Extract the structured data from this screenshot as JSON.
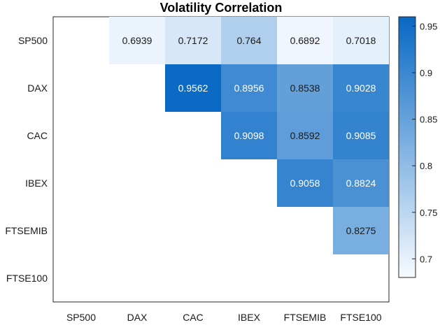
{
  "chart_data": {
    "type": "heatmap",
    "title": "Volatility Correlation",
    "x_categories": [
      "SP500",
      "DAX",
      "CAC",
      "IBEX",
      "FTSEMIB",
      "FTSE100"
    ],
    "y_categories": [
      "SP500",
      "DAX",
      "CAC",
      "IBEX",
      "FTSEMIB",
      "FTSE100"
    ],
    "cells": [
      {
        "row": "SP500",
        "col": "DAX",
        "value": 0.6939,
        "label": "0.6939"
      },
      {
        "row": "SP500",
        "col": "CAC",
        "value": 0.7172,
        "label": "0.7172"
      },
      {
        "row": "SP500",
        "col": "IBEX",
        "value": 0.764,
        "label": "0.764"
      },
      {
        "row": "SP500",
        "col": "FTSEMIB",
        "value": 0.6892,
        "label": "0.6892"
      },
      {
        "row": "SP500",
        "col": "FTSE100",
        "value": 0.7018,
        "label": "0.7018"
      },
      {
        "row": "DAX",
        "col": "CAC",
        "value": 0.9562,
        "label": "0.9562"
      },
      {
        "row": "DAX",
        "col": "IBEX",
        "value": 0.8956,
        "label": "0.8956"
      },
      {
        "row": "DAX",
        "col": "FTSEMIB",
        "value": 0.8538,
        "label": "0.8538"
      },
      {
        "row": "DAX",
        "col": "FTSE100",
        "value": 0.9028,
        "label": "0.9028"
      },
      {
        "row": "CAC",
        "col": "IBEX",
        "value": 0.9098,
        "label": "0.9098"
      },
      {
        "row": "CAC",
        "col": "FTSEMIB",
        "value": 0.8592,
        "label": "0.8592"
      },
      {
        "row": "CAC",
        "col": "FTSE100",
        "value": 0.9085,
        "label": "0.9085"
      },
      {
        "row": "IBEX",
        "col": "FTSEMIB",
        "value": 0.9058,
        "label": "0.9058"
      },
      {
        "row": "IBEX",
        "col": "FTSE100",
        "value": 0.8824,
        "label": "0.8824"
      },
      {
        "row": "FTSEMIB",
        "col": "FTSE100",
        "value": 0.8275,
        "label": "0.8275"
      }
    ],
    "colorbar": {
      "range": [
        0.68,
        0.96
      ],
      "ticks": [
        "0.7",
        "0.75",
        "0.8",
        "0.85",
        "0.9",
        "0.95"
      ],
      "tick_values": [
        0.7,
        0.75,
        0.8,
        0.85,
        0.9,
        0.95
      ],
      "color_low": "#f7fbff",
      "color_high": "#0868c4"
    },
    "grid": false,
    "colorbar_placement": "right"
  }
}
